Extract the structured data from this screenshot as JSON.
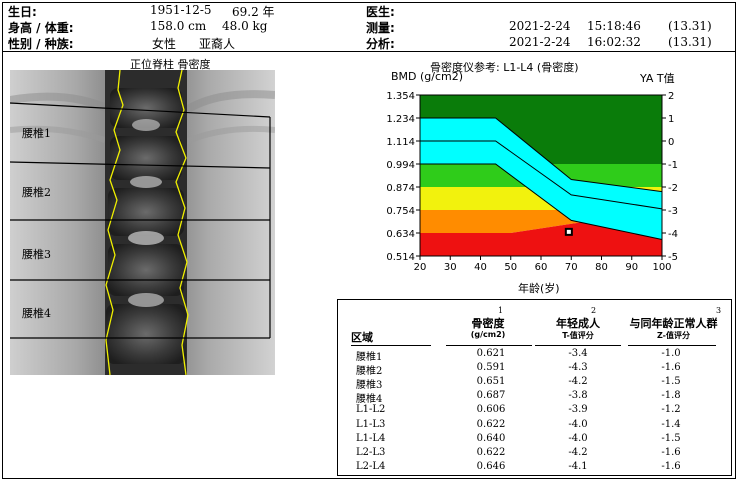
{
  "header": {
    "birth_label": "生日:",
    "birth_date": "1951-12-5",
    "age": "69.2 年",
    "height_weight_label": "身高 / 体重:",
    "height": "158.0 cm",
    "weight": "48.0 kg",
    "sex_race_label": "性别 / 种族:",
    "sex": "女性",
    "race": "亚裔人",
    "doctor_label": "医生:",
    "measured_label": "测量:",
    "measured_date": "2021-2-24",
    "measured_time": "15:18:46",
    "measured_version": "(13.31)",
    "analyzed_label": "分析:",
    "analyzed_date": "2021-2-24",
    "analyzed_time": "16:02:32",
    "analyzed_version": "(13.31)"
  },
  "scan": {
    "title": "正位脊柱 骨密度",
    "vertebrae": [
      "腰椎1",
      "腰椎2",
      "腰椎3",
      "腰椎4"
    ]
  },
  "chart_data": {
    "type": "area",
    "title": "骨密度仪参考: L1-L4 (骨密度)",
    "ylabel": "BMD (g/cm2)",
    "y2label": "YA T值",
    "xlabel": "年龄(岁)",
    "x_ticks": [
      20,
      30,
      40,
      50,
      60,
      70,
      80,
      90,
      100
    ],
    "y_ticks": [
      "1.354",
      "1.234",
      "1.114",
      "0.994",
      "0.874",
      "0.754",
      "0.634",
      "0.514"
    ],
    "y2_ticks": [
      "2",
      "1",
      "0",
      "-1",
      "-2",
      "-3",
      "-4",
      "-5"
    ],
    "xlim": [
      20,
      100
    ],
    "ylim": [
      0.514,
      1.354
    ],
    "zones": [
      {
        "name": "dark green",
        "color": "#0a7c0a",
        "lower": 0.994
      },
      {
        "name": "green",
        "color": "#2fcc1a",
        "lower": 0.874
      },
      {
        "name": "yellow",
        "color": "#f2f20d",
        "lower": 0.754
      },
      {
        "name": "orange",
        "color": "#ff8c00",
        "lower_at_50": 0.634,
        "lower_at_100": 0.754
      },
      {
        "name": "red",
        "color": "#ee1111",
        "lower": 0.514
      }
    ],
    "reference_band": {
      "color": "#00ffff",
      "upper": {
        "x": [
          20,
          45,
          70,
          100
        ],
        "y": [
          1.234,
          1.234,
          0.913,
          0.85
        ]
      },
      "middle": {
        "x": [
          20,
          45,
          70,
          100
        ],
        "y": [
          1.114,
          1.114,
          0.833,
          0.76
        ]
      },
      "lower": {
        "x": [
          20,
          45,
          70,
          100
        ],
        "y": [
          0.994,
          0.994,
          0.7,
          0.6
        ]
      }
    },
    "patient_point": {
      "x": 69.2,
      "y": 0.64
    }
  },
  "table": {
    "headers": {
      "region": "区域",
      "bmd": "骨密度",
      "bmd_unit": "(g/cm2)",
      "bmd_note": "1",
      "young_adult": "年轻成人",
      "young_adult_sub": "T-值评分",
      "young_adult_note": "2",
      "age_matched": "与同年龄正常人群",
      "age_matched_sub": "Z-值评分",
      "age_matched_note": "3"
    },
    "rows": [
      {
        "region": "腰椎1",
        "bmd": "0.621",
        "t": "-3.4",
        "z": "-1.0"
      },
      {
        "region": "腰椎2",
        "bmd": "0.591",
        "t": "-4.3",
        "z": "-1.6"
      },
      {
        "region": "腰椎3",
        "bmd": "0.651",
        "t": "-4.2",
        "z": "-1.5"
      },
      {
        "region": "腰椎4",
        "bmd": "0.687",
        "t": "-3.8",
        "z": "-1.8"
      },
      {
        "region": "L1-L2",
        "bmd": "0.606",
        "t": "-3.9",
        "z": "-1.2"
      },
      {
        "region": "L1-L3",
        "bmd": "0.622",
        "t": "-4.0",
        "z": "-1.4"
      },
      {
        "region": "L1-L4",
        "bmd": "0.640",
        "t": "-4.0",
        "z": "-1.5"
      },
      {
        "region": "L2-L3",
        "bmd": "0.622",
        "t": "-4.2",
        "z": "-1.6"
      },
      {
        "region": "L2-L4",
        "bmd": "0.646",
        "t": "-4.1",
        "z": "-1.6"
      }
    ]
  }
}
